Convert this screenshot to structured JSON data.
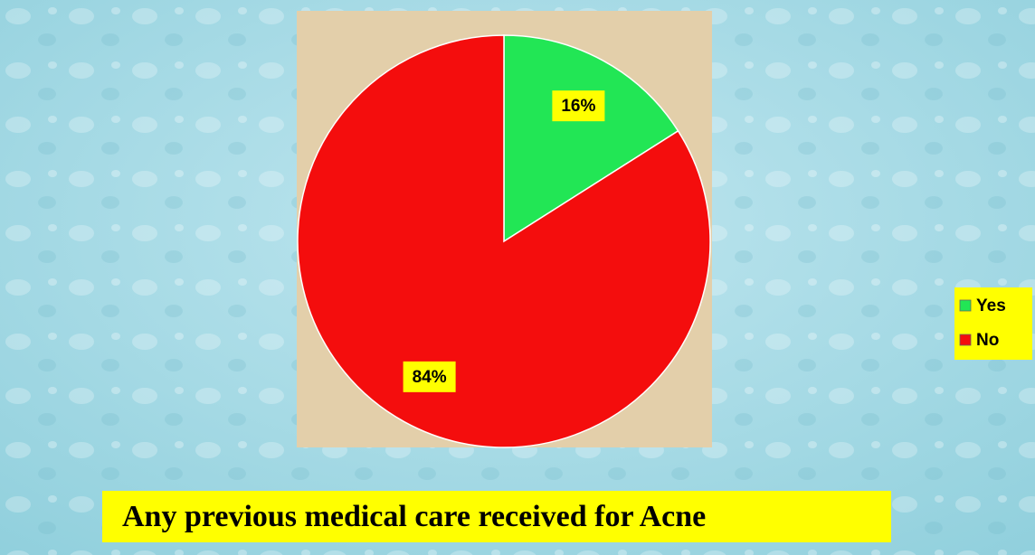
{
  "chart_data": {
    "type": "pie",
    "title": "Any previous medical care received for Acne",
    "categories": [
      "Yes",
      "No"
    ],
    "values": [
      16,
      84
    ],
    "value_labels": [
      "16%",
      "84%"
    ],
    "colors": [
      "#22e655",
      "#f40d0d"
    ],
    "legend": "right"
  }
}
